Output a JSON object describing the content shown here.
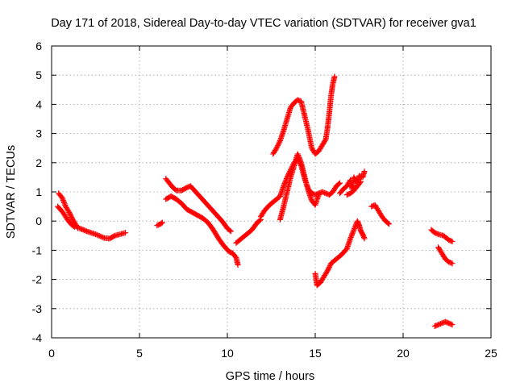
{
  "chart_data": {
    "type": "scatter",
    "title": "Day 171 of 2018, Sidereal Day-to-day VTEC variation (SDTVAR) for receiver gva1",
    "xlabel": "GPS time / hours",
    "ylabel": "SDTVAR / TECUs",
    "xlim": [
      0,
      25
    ],
    "ylim": [
      -4,
      6
    ],
    "xticks": [
      0,
      5,
      10,
      15,
      20,
      25
    ],
    "yticks": [
      -4,
      -3,
      -2,
      -1,
      0,
      1,
      2,
      3,
      4,
      5,
      6
    ],
    "xtick_labels": [
      "0",
      "5",
      "10",
      "15",
      "20",
      "25"
    ],
    "ytick_labels": [
      "-4",
      "-3",
      "-2",
      "-1",
      "0",
      "1",
      "2",
      "3",
      "4",
      "5",
      "6"
    ],
    "grid": true,
    "marker": "plus",
    "series": [
      {
        "name": "SDTVAR",
        "color": "#ff0000",
        "segments": [
          [
            [
              0.4,
              0.95
            ],
            [
              0.6,
              0.8
            ],
            [
              0.8,
              0.5
            ],
            [
              1.0,
              0.3
            ],
            [
              1.2,
              0.05
            ],
            [
              1.4,
              -0.15
            ],
            [
              1.5,
              -0.25
            ]
          ],
          [
            [
              0.35,
              0.5
            ],
            [
              0.5,
              0.4
            ],
            [
              0.7,
              0.25
            ],
            [
              0.9,
              0.05
            ],
            [
              1.1,
              -0.1
            ],
            [
              1.3,
              -0.2
            ]
          ],
          [
            [
              1.6,
              -0.25
            ],
            [
              2.0,
              -0.35
            ],
            [
              2.5,
              -0.45
            ],
            [
              3.0,
              -0.58
            ],
            [
              3.3,
              -0.6
            ],
            [
              3.6,
              -0.5
            ],
            [
              3.9,
              -0.45
            ],
            [
              4.2,
              -0.4
            ]
          ],
          [
            [
              6.0,
              -0.15
            ],
            [
              6.2,
              -0.1
            ],
            [
              6.3,
              -0.05
            ]
          ],
          [
            [
              6.5,
              1.45
            ],
            [
              6.7,
              1.3
            ],
            [
              6.9,
              1.15
            ],
            [
              7.1,
              1.05
            ],
            [
              7.4,
              1.05
            ],
            [
              7.7,
              1.15
            ],
            [
              7.9,
              1.2
            ],
            [
              8.2,
              1.0
            ],
            [
              8.5,
              0.8
            ],
            [
              8.8,
              0.6
            ],
            [
              9.1,
              0.4
            ],
            [
              9.4,
              0.2
            ],
            [
              9.7,
              0.0
            ],
            [
              10.0,
              -0.25
            ],
            [
              10.2,
              -0.35
            ]
          ],
          [
            [
              6.5,
              0.75
            ],
            [
              6.8,
              0.85
            ],
            [
              7.1,
              0.75
            ],
            [
              7.4,
              0.6
            ],
            [
              7.7,
              0.4
            ],
            [
              8.0,
              0.3
            ],
            [
              8.3,
              0.2
            ],
            [
              8.6,
              0.1
            ],
            [
              8.9,
              -0.05
            ],
            [
              9.2,
              -0.3
            ],
            [
              9.5,
              -0.6
            ],
            [
              9.8,
              -0.85
            ],
            [
              10.1,
              -1.05
            ],
            [
              10.3,
              -1.1
            ],
            [
              10.5,
              -1.25
            ],
            [
              10.6,
              -1.5
            ]
          ],
          [
            [
              10.5,
              -0.75
            ],
            [
              10.8,
              -0.6
            ],
            [
              11.1,
              -0.45
            ],
            [
              11.4,
              -0.3
            ],
            [
              11.7,
              -0.05
            ],
            [
              11.9,
              0.05
            ]
          ],
          [
            [
              11.9,
              0.15
            ],
            [
              12.1,
              0.35
            ],
            [
              12.4,
              0.55
            ],
            [
              12.7,
              0.7
            ],
            [
              13.0,
              0.85
            ],
            [
              13.2,
              1.2
            ],
            [
              13.4,
              1.5
            ],
            [
              13.6,
              1.75
            ],
            [
              13.8,
              2.0
            ],
            [
              14.0,
              2.15
            ],
            [
              14.2,
              1.9
            ],
            [
              14.4,
              1.45
            ],
            [
              14.6,
              1.1
            ],
            [
              14.8,
              0.95
            ],
            [
              15.0,
              0.9
            ],
            [
              15.2,
              0.95
            ],
            [
              15.4,
              1.0
            ],
            [
              15.6,
              0.95
            ],
            [
              15.8,
              0.9
            ],
            [
              16.0,
              1.0
            ],
            [
              16.2,
              1.2
            ],
            [
              16.4,
              1.3
            ]
          ],
          [
            [
              12.6,
              2.3
            ],
            [
              12.8,
              2.5
            ],
            [
              13.0,
              2.75
            ],
            [
              13.2,
              3.1
            ],
            [
              13.4,
              3.5
            ],
            [
              13.6,
              3.9
            ],
            [
              13.8,
              4.05
            ],
            [
              14.0,
              4.15
            ],
            [
              14.2,
              4.1
            ],
            [
              14.4,
              3.6
            ],
            [
              14.6,
              3.1
            ],
            [
              14.8,
              2.5
            ],
            [
              15.0,
              2.3
            ],
            [
              15.2,
              2.4
            ],
            [
              15.4,
              2.6
            ],
            [
              15.6,
              2.8
            ],
            [
              15.7,
              3.2
            ],
            [
              15.8,
              3.7
            ],
            [
              15.9,
              4.3
            ],
            [
              16.0,
              4.7
            ],
            [
              16.1,
              4.95
            ]
          ],
          [
            [
              13.0,
              0.05
            ],
            [
              13.2,
              0.5
            ],
            [
              13.4,
              1.0
            ],
            [
              13.6,
              1.5
            ],
            [
              13.8,
              1.9
            ],
            [
              14.0,
              2.3
            ],
            [
              14.2,
              2.0
            ],
            [
              14.4,
              1.5
            ],
            [
              14.6,
              1.05
            ],
            [
              14.8,
              0.7
            ],
            [
              15.0,
              0.55
            ],
            [
              15.2,
              0.9
            ]
          ],
          [
            [
              16.4,
              0.95
            ],
            [
              16.6,
              1.1
            ],
            [
              16.8,
              1.2
            ],
            [
              17.0,
              1.4
            ],
            [
              17.1,
              1.1
            ],
            [
              17.2,
              1.5
            ],
            [
              17.4,
              1.3
            ],
            [
              17.5,
              1.55
            ],
            [
              17.7,
              1.5
            ],
            [
              17.8,
              1.7
            ]
          ],
          [
            [
              16.8,
              0.9
            ],
            [
              17.0,
              0.95
            ],
            [
              17.2,
              1.05
            ],
            [
              17.4,
              1.2
            ],
            [
              17.6,
              1.35
            ]
          ],
          [
            [
              15.0,
              -1.8
            ],
            [
              15.1,
              -2.2
            ],
            [
              15.3,
              -2.1
            ],
            [
              15.5,
              -1.9
            ],
            [
              15.7,
              -1.7
            ],
            [
              15.9,
              -1.45
            ],
            [
              16.2,
              -1.3
            ],
            [
              16.5,
              -1.15
            ],
            [
              16.8,
              -0.95
            ],
            [
              17.0,
              -0.6
            ],
            [
              17.2,
              -0.3
            ],
            [
              17.4,
              0.0
            ],
            [
              17.5,
              -0.15
            ],
            [
              17.6,
              -0.35
            ],
            [
              17.7,
              -0.45
            ],
            [
              17.8,
              -0.6
            ]
          ],
          [
            [
              18.2,
              0.5
            ],
            [
              18.4,
              0.55
            ],
            [
              18.6,
              0.35
            ],
            [
              18.8,
              0.15
            ],
            [
              19.0,
              0.0
            ],
            [
              19.2,
              -0.1
            ]
          ],
          [
            [
              21.6,
              -0.3
            ],
            [
              21.8,
              -0.4
            ],
            [
              22.0,
              -0.45
            ],
            [
              22.3,
              -0.5
            ],
            [
              22.6,
              -0.65
            ],
            [
              22.8,
              -0.7
            ]
          ],
          [
            [
              22.0,
              -0.9
            ],
            [
              22.2,
              -1.1
            ],
            [
              22.4,
              -1.3
            ],
            [
              22.6,
              -1.4
            ],
            [
              22.8,
              -1.45
            ]
          ],
          [
            [
              21.8,
              -3.6
            ],
            [
              22.0,
              -3.55
            ],
            [
              22.2,
              -3.5
            ],
            [
              22.4,
              -3.45
            ],
            [
              22.6,
              -3.5
            ],
            [
              22.8,
              -3.55
            ]
          ]
        ]
      }
    ]
  }
}
